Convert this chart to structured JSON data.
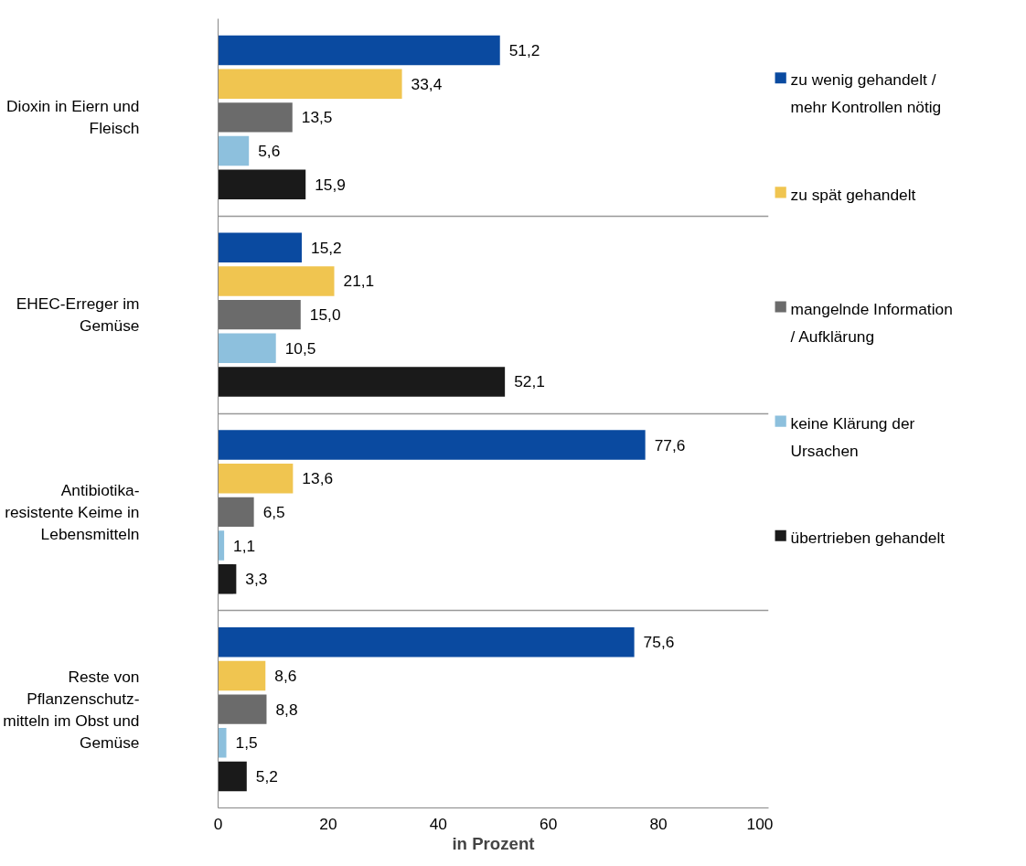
{
  "chart_data": {
    "type": "bar",
    "orientation": "horizontal",
    "xlabel": "in Prozent",
    "categories": [
      "Dioxin in Eiern und Fleisch",
      "EHEC-Erreger im Gemüse",
      "Antibiotika-resistente Keime in Lebensmitteln",
      "Reste von Pflanzenschutz-mitteln im Obst und Gemüse"
    ],
    "series": [
      {
        "name": "zu wenig gehandelt / mehr Kontrollen nötig",
        "color": "#0a4aa0",
        "values": [
          51.2,
          15.2,
          77.6,
          75.6
        ],
        "value_labels": [
          "51,2",
          "15,2",
          "77,6",
          "75,6"
        ]
      },
      {
        "name": "zu spät gehandelt",
        "color": "#f0c550",
        "values": [
          33.4,
          21.1,
          13.6,
          8.6
        ],
        "value_labels": [
          "33,4",
          "21,1",
          "13,6",
          "8,6"
        ]
      },
      {
        "name": "mangelnde Information / Aufklärung",
        "color": "#6b6b6b",
        "values": [
          13.5,
          15.0,
          6.5,
          8.8
        ],
        "value_labels": [
          "13,5",
          "15,0",
          "6,5",
          "8,8"
        ]
      },
      {
        "name": "keine Klärung der Ursachen",
        "color": "#8dc0dd",
        "values": [
          5.6,
          10.5,
          1.1,
          1.5
        ],
        "value_labels": [
          "5,6",
          "10,5",
          "1,1",
          "1,5"
        ]
      },
      {
        "name": "übertrieben gehandelt",
        "color": "#1a1a1a",
        "values": [
          15.9,
          52.1,
          3.3,
          5.2
        ],
        "value_labels": [
          "15,9",
          "52,1",
          "3,3",
          "5,2"
        ]
      }
    ],
    "xlim": [
      0,
      100
    ],
    "xticks": [
      0,
      20,
      40,
      60,
      80,
      100
    ],
    "grid": "y",
    "legend": "right"
  }
}
